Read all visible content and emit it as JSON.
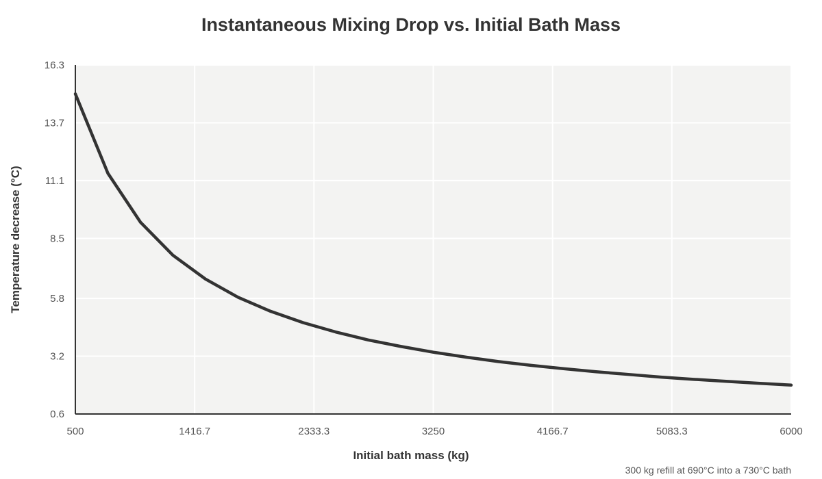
{
  "chart_data": {
    "type": "line",
    "title": "Instantaneous Mixing Drop vs. Initial Bath Mass",
    "xlabel": "Initial bath mass (kg)",
    "ylabel": "Temperature decrease (°C)",
    "annotation": "300 kg refill at 690°C into a 730°C bath",
    "xlim": [
      500,
      6000
    ],
    "ylim": [
      0.6,
      16.3
    ],
    "x_ticks": [
      500,
      1416.7,
      2333.3,
      3250,
      4166.7,
      5083.3,
      6000
    ],
    "x_tick_labels": [
      "500",
      "1416.7",
      "2333.3",
      "3250",
      "4166.7",
      "5083.3",
      "6000"
    ],
    "y_ticks": [
      0.6,
      3.2,
      5.8,
      8.5,
      11.1,
      13.7,
      16.3
    ],
    "y_tick_labels": [
      "0.6",
      "3.2",
      "5.8",
      "8.5",
      "11.1",
      "13.7",
      "16.3"
    ],
    "grid": true,
    "series": [
      {
        "color": "#333333",
        "x": [
          500,
          750,
          1000,
          1250,
          1500,
          1750,
          2000,
          2250,
          2500,
          2750,
          3000,
          3250,
          3500,
          3750,
          4000,
          4250,
          4500,
          4750,
          5000,
          5250,
          5500,
          5750,
          6000
        ],
        "y": [
          15.0,
          11.43,
          9.23,
          7.74,
          6.67,
          5.85,
          5.22,
          4.71,
          4.29,
          3.93,
          3.64,
          3.38,
          3.16,
          2.96,
          2.79,
          2.64,
          2.5,
          2.38,
          2.26,
          2.16,
          2.07,
          1.98,
          1.9
        ]
      }
    ]
  },
  "colors": {
    "plot_background": "#f3f3f2",
    "grid": "#ffffff",
    "axis": "#333333",
    "line": "#333333"
  }
}
